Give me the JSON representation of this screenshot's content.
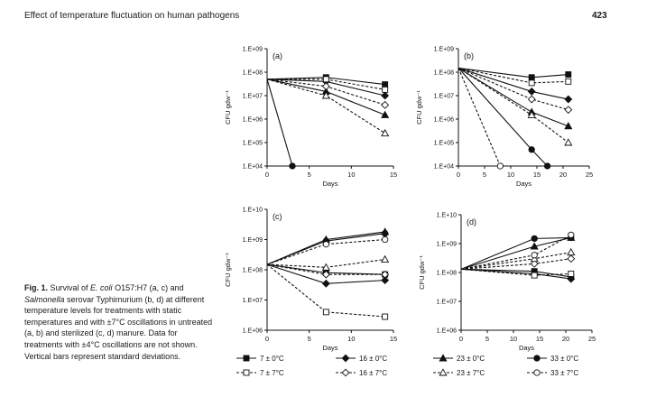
{
  "header": {
    "running_title": "Effect of temperature fluctuation on human pathogens",
    "page_number": "423"
  },
  "caption": {
    "label": "Fig. 1.",
    "t1": " Survival of ",
    "t2": "E. coli",
    "t3": " O157:H7 (a, c) and ",
    "t4": "Salmonella",
    "t5": " serovar Typhimurium (b, d) at different temperature levels for treatments with static temperatures and with ±7°C oscillations in untreated (a, b) and sterilized (c, d) manure. Data for treatments with ±4°C oscillations are not shown. Vertical bars represent standard deviations."
  },
  "legend": [
    {
      "label": "7 ± 0°C",
      "marker": "square",
      "filled": true,
      "dashed": false
    },
    {
      "label": "16 ± 0°C",
      "marker": "diamond",
      "filled": true,
      "dashed": false
    },
    {
      "label": "23 ± 0°C",
      "marker": "triangle",
      "filled": true,
      "dashed": false
    },
    {
      "label": "33 ± 0°C",
      "marker": "circle",
      "filled": true,
      "dashed": false
    },
    {
      "label": "7 ± 7°C",
      "marker": "square",
      "filled": false,
      "dashed": true
    },
    {
      "label": "16 ± 7°C",
      "marker": "diamond",
      "filled": false,
      "dashed": true
    },
    {
      "label": "23 ± 7°C",
      "marker": "triangle",
      "filled": false,
      "dashed": true
    },
    {
      "label": "33 ± 7°C",
      "marker": "circle",
      "filled": false,
      "dashed": true
    }
  ],
  "chart_data": [
    {
      "type": "line",
      "panel": "(a)",
      "xlabel": "Days",
      "ylabel": "CFU gdw⁻¹",
      "xlim": [
        0,
        15
      ],
      "xticks": [
        0,
        5,
        10,
        15
      ],
      "y_log": true,
      "ylim_exp": [
        4,
        9
      ],
      "yticks": [
        "1.E+04",
        "1.E+05",
        "1.E+06",
        "1.E+07",
        "1.E+08",
        "1.E+09"
      ],
      "series": [
        {
          "name": "7 ± 0°C",
          "x": [
            0,
            7,
            14
          ],
          "y": [
            50000000.0,
            60000000.0,
            30000000.0
          ]
        },
        {
          "name": "16 ± 0°C",
          "x": [
            0,
            7,
            14
          ],
          "y": [
            50000000.0,
            40000000.0,
            10000000.0
          ]
        },
        {
          "name": "23 ± 0°C",
          "x": [
            0,
            7,
            14
          ],
          "y": [
            50000000.0,
            15000000.0,
            1500000.0
          ]
        },
        {
          "name": "33 ± 0°C",
          "x": [
            0,
            3
          ],
          "y": [
            50000000.0,
            10000.0
          ]
        },
        {
          "name": "7 ± 7°C",
          "x": [
            0,
            7,
            14
          ],
          "y": [
            50000000.0,
            50000000.0,
            18000000.0
          ]
        },
        {
          "name": "16 ± 7°C",
          "x": [
            0,
            7,
            14
          ],
          "y": [
            50000000.0,
            25000000.0,
            4000000.0
          ]
        },
        {
          "name": "23 ± 7°C",
          "x": [
            0,
            7,
            14
          ],
          "y": [
            50000000.0,
            10000000.0,
            250000.0
          ]
        }
      ]
    },
    {
      "type": "line",
      "panel": "(b)",
      "xlabel": "Days",
      "ylabel": "CFU gdw⁻¹",
      "xlim": [
        0,
        25
      ],
      "xticks": [
        0,
        5,
        10,
        15,
        20,
        25
      ],
      "y_log": true,
      "ylim_exp": [
        4,
        9
      ],
      "yticks": [
        "1.E+04",
        "1.E+05",
        "1.E+06",
        "1.E+07",
        "1.E+08",
        "1.E+09"
      ],
      "series": [
        {
          "name": "7 ± 0°C",
          "x": [
            0,
            14,
            21
          ],
          "y": [
            150000000.0,
            60000000.0,
            80000000.0
          ]
        },
        {
          "name": "16 ± 0°C",
          "x": [
            0,
            14,
            21
          ],
          "y": [
            150000000.0,
            15000000.0,
            7000000.0
          ]
        },
        {
          "name": "23 ± 0°C",
          "x": [
            0,
            14,
            21
          ],
          "y": [
            150000000.0,
            2000000.0,
            500000.0
          ]
        },
        {
          "name": "33 ± 0°C",
          "x": [
            0,
            14,
            17
          ],
          "y": [
            150000000.0,
            50000.0,
            10000.0
          ]
        },
        {
          "name": "7 ± 7°C",
          "x": [
            0,
            14,
            21
          ],
          "y": [
            150000000.0,
            35000000.0,
            40000000.0
          ]
        },
        {
          "name": "16 ± 7°C",
          "x": [
            0,
            14,
            21
          ],
          "y": [
            150000000.0,
            7000000.0,
            2500000.0
          ]
        },
        {
          "name": "23 ± 7°C",
          "x": [
            0,
            14,
            21
          ],
          "y": [
            150000000.0,
            1500000.0,
            100000.0
          ]
        },
        {
          "name": "33 ± 7°C",
          "x": [
            0,
            8
          ],
          "y": [
            150000000.0,
            10000.0
          ]
        }
      ]
    },
    {
      "type": "line",
      "panel": "(c)",
      "xlabel": "Days",
      "ylabel": "CFU gdw⁻¹",
      "xlim": [
        0,
        15
      ],
      "xticks": [
        0,
        5,
        10,
        15
      ],
      "y_log": true,
      "ylim_exp": [
        6,
        10
      ],
      "yticks": [
        "1.E+06",
        "1.E+07",
        "1.E+08",
        "1.E+09",
        "1.E+10"
      ],
      "series": [
        {
          "name": "7 ± 0°C",
          "x": [
            0,
            7,
            14
          ],
          "y": [
            150000000.0,
            80000000.0,
            70000000.0
          ]
        },
        {
          "name": "16 ± 0°C",
          "x": [
            0,
            7,
            14
          ],
          "y": [
            150000000.0,
            35000000.0,
            45000000.0
          ]
        },
        {
          "name": "23 ± 0°C",
          "x": [
            0,
            7,
            14
          ],
          "y": [
            150000000.0,
            1000000000.0,
            1800000000.0
          ]
        },
        {
          "name": "33 ± 0°C",
          "x": [
            0,
            7,
            14
          ],
          "y": [
            150000000.0,
            900000000.0,
            1600000000.0
          ]
        },
        {
          "name": "7 ± 7°C",
          "x": [
            0,
            7,
            14
          ],
          "y": [
            150000000.0,
            4000000.0,
            2800000.0
          ]
        },
        {
          "name": "16 ± 7°C",
          "x": [
            0,
            7,
            14
          ],
          "y": [
            150000000.0,
            70000000.0,
            70000000.0
          ]
        },
        {
          "name": "23 ± 7°C",
          "x": [
            0,
            7,
            14
          ],
          "y": [
            150000000.0,
            120000000.0,
            220000000.0
          ]
        },
        {
          "name": "33 ± 7°C",
          "x": [
            0,
            7,
            14
          ],
          "y": [
            150000000.0,
            700000000.0,
            1000000000.0
          ]
        }
      ]
    },
    {
      "type": "line",
      "panel": "(d)",
      "xlabel": "Days",
      "ylabel": "CFU gdw⁻¹",
      "xlim": [
        0,
        25
      ],
      "xticks": [
        0,
        5,
        10,
        15,
        20,
        25
      ],
      "y_log": true,
      "ylim_exp": [
        6,
        10
      ],
      "yticks": [
        "1.E+06",
        "1.E+07",
        "1.E+08",
        "1.E+09",
        "1.E+10"
      ],
      "series": [
        {
          "name": "7 ± 0°C",
          "x": [
            0,
            14,
            21
          ],
          "y": [
            130000000.0,
            110000000.0,
            70000000.0
          ]
        },
        {
          "name": "16 ± 0°C",
          "x": [
            0,
            14,
            21
          ],
          "y": [
            130000000.0,
            90000000.0,
            60000000.0
          ]
        },
        {
          "name": "23 ± 0°C",
          "x": [
            0,
            14,
            21
          ],
          "y": [
            130000000.0,
            800000000.0,
            1600000000.0
          ]
        },
        {
          "name": "33 ± 0°C",
          "x": [
            0,
            14,
            21
          ],
          "y": [
            130000000.0,
            1500000000.0,
            1600000000.0
          ]
        },
        {
          "name": "7 ± 7°C",
          "x": [
            0,
            14,
            21
          ],
          "y": [
            130000000.0,
            80000000.0,
            90000000.0
          ]
        },
        {
          "name": "16 ± 7°C",
          "x": [
            0,
            14,
            21
          ],
          "y": [
            130000000.0,
            200000000.0,
            300000000.0
          ]
        },
        {
          "name": "23 ± 7°C",
          "x": [
            0,
            14,
            21
          ],
          "y": [
            130000000.0,
            300000000.0,
            500000000.0
          ]
        },
        {
          "name": "33 ± 7°C",
          "x": [
            0,
            14,
            21
          ],
          "y": [
            130000000.0,
            400000000.0,
            2000000000.0
          ]
        }
      ]
    }
  ]
}
